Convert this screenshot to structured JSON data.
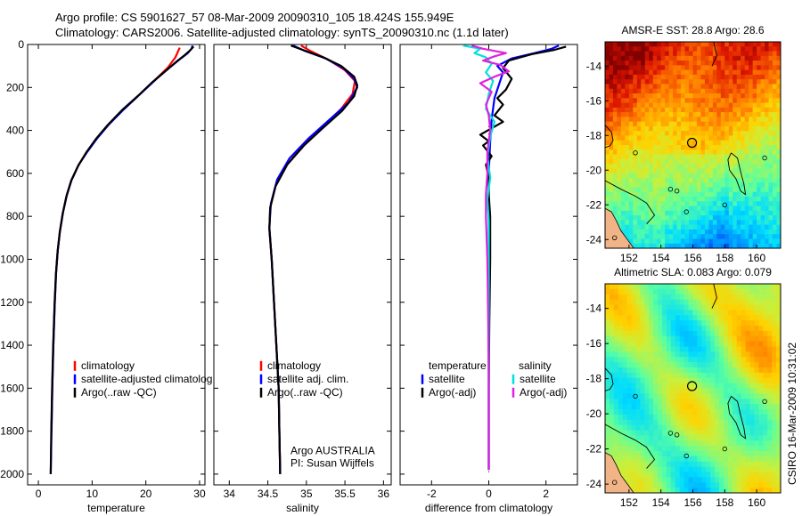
{
  "header": {
    "line1": "Argo profile: CS 5901627_57 08-Mar-2009 20090310_105 18.424S 155.949E",
    "line2": "Climatology: CARS2006. Satellite-adjusted climatology: synTS_20090310.nc (1.1d later)"
  },
  "depth_axis": {
    "ylim": [
      0,
      2050
    ],
    "ticks": [
      0,
      200,
      400,
      600,
      800,
      1000,
      1200,
      1400,
      1600,
      1800,
      2000
    ]
  },
  "chart_data": [
    {
      "id": "temperature",
      "type": "line",
      "xlabel": "temperature",
      "xlim": [
        -2,
        31
      ],
      "xticks": [
        0,
        10,
        20,
        30
      ],
      "legend": [
        "climatology",
        "satellite-adjusted climatolog",
        "Argo(..raw -QC)"
      ],
      "series": [
        {
          "name": "climatology",
          "color": "#ff0000",
          "points": [
            [
              26.3,
              15
            ],
            [
              25.5,
              60
            ],
            [
              24,
              110
            ],
            [
              21.5,
              170
            ],
            [
              18.5,
              240
            ],
            [
              15.5,
              310
            ],
            [
              12.8,
              380
            ],
            [
              10.8,
              440
            ],
            [
              9,
              500
            ],
            [
              7.5,
              560
            ],
            [
              6.2,
              630
            ],
            [
              5.3,
              700
            ],
            [
              4.6,
              780
            ],
            [
              4,
              870
            ],
            [
              3.6,
              960
            ],
            [
              3.3,
              1060
            ],
            [
              3.05,
              1200
            ],
            [
              2.8,
              1400
            ],
            [
              2.6,
              1600
            ],
            [
              2.45,
              1800
            ]
          ]
        },
        {
          "name": "satellite-adjusted climatology",
          "color": "#0000ff",
          "points": [
            [
              28.7,
              5
            ],
            [
              28.5,
              20
            ],
            [
              27.8,
              40
            ],
            [
              26.5,
              65
            ],
            [
              24.8,
              100
            ],
            [
              22,
              160
            ],
            [
              19,
              230
            ],
            [
              16,
              300
            ],
            [
              13.2,
              370
            ],
            [
              11,
              435
            ],
            [
              9.1,
              500
            ],
            [
              7.5,
              560
            ],
            [
              6.2,
              630
            ],
            [
              5.3,
              700
            ],
            [
              4.6,
              780
            ],
            [
              4,
              870
            ],
            [
              3.6,
              960
            ],
            [
              3.3,
              1060
            ],
            [
              3.05,
              1200
            ],
            [
              2.8,
              1400
            ],
            [
              2.6,
              1600
            ],
            [
              2.45,
              1800
            ],
            [
              2.3,
              2000
            ]
          ]
        },
        {
          "name": "Argo(..raw -QC)",
          "color": "#000000",
          "points": [
            [
              28.9,
              10
            ],
            [
              28.2,
              28
            ],
            [
              27.2,
              50
            ],
            [
              25.7,
              80
            ],
            [
              23.8,
              120
            ],
            [
              21,
              180
            ],
            [
              18.5,
              240
            ],
            [
              15.6,
              305
            ],
            [
              12.9,
              375
            ],
            [
              10.7,
              440
            ],
            [
              9,
              500
            ],
            [
              7.4,
              565
            ],
            [
              6.1,
              635
            ],
            [
              5.2,
              710
            ],
            [
              4.5,
              790
            ],
            [
              3.95,
              880
            ],
            [
              3.55,
              970
            ],
            [
              3.25,
              1070
            ],
            [
              3,
              1210
            ],
            [
              2.75,
              1410
            ],
            [
              2.55,
              1610
            ],
            [
              2.4,
              1810
            ],
            [
              2.3,
              2000
            ]
          ]
        }
      ]
    },
    {
      "id": "salinity",
      "type": "line",
      "xlabel": "salinity",
      "xlim": [
        33.8,
        36.1
      ],
      "xticks": [
        34,
        34.5,
        35,
        35.5,
        36
      ],
      "legend": [
        "climatology",
        "satellite adj. clim.",
        "Argo(..raw -QC)"
      ],
      "credit": [
        "Argo AUSTRALIA",
        "PI: Susan Wijffels"
      ],
      "series": [
        {
          "name": "climatology",
          "color": "#ff0000",
          "points": [
            [
              34.93,
              5
            ],
            [
              35.05,
              30
            ],
            [
              35.28,
              70
            ],
            [
              35.5,
              120
            ],
            [
              35.63,
              170
            ],
            [
              35.6,
              230
            ],
            [
              35.45,
              300
            ],
            [
              35.22,
              380
            ],
            [
              34.98,
              460
            ],
            [
              34.75,
              560
            ],
            [
              34.6,
              660
            ],
            [
              34.53,
              760
            ],
            [
              34.52,
              860
            ],
            [
              34.55,
              1000
            ],
            [
              34.58,
              1200
            ],
            [
              34.61,
              1400
            ],
            [
              34.64,
              1600
            ],
            [
              34.65,
              1800
            ],
            [
              34.66,
              2000
            ]
          ]
        },
        {
          "name": "satellite adj. clim.",
          "color": "#0000ff",
          "points": [
            [
              34.83,
              5
            ],
            [
              34.98,
              30
            ],
            [
              35.25,
              65
            ],
            [
              35.48,
              110
            ],
            [
              35.62,
              160
            ],
            [
              35.66,
              200
            ],
            [
              35.55,
              270
            ],
            [
              35.3,
              350
            ],
            [
              35.02,
              440
            ],
            [
              34.78,
              530
            ],
            [
              34.62,
              630
            ],
            [
              34.54,
              740
            ],
            [
              34.52,
              850
            ],
            [
              34.55,
              1000
            ],
            [
              34.58,
              1200
            ],
            [
              34.61,
              1400
            ],
            [
              34.64,
              1600
            ],
            [
              34.65,
              1800
            ],
            [
              34.66,
              2000
            ]
          ]
        },
        {
          "name": "Argo(..raw -QC)",
          "color": "#000000",
          "points": [
            [
              34.8,
              5
            ],
            [
              34.95,
              25
            ],
            [
              35.22,
              60
            ],
            [
              35.45,
              100
            ],
            [
              35.62,
              150
            ],
            [
              35.66,
              190
            ],
            [
              35.62,
              240
            ],
            [
              35.46,
              310
            ],
            [
              35.21,
              390
            ],
            [
              34.97,
              470
            ],
            [
              34.75,
              560
            ],
            [
              34.6,
              660
            ],
            [
              34.53,
              760
            ],
            [
              34.52,
              860
            ],
            [
              34.55,
              1000
            ],
            [
              34.58,
              1200
            ],
            [
              34.61,
              1400
            ],
            [
              34.64,
              1600
            ],
            [
              34.65,
              1800
            ],
            [
              34.66,
              2000
            ]
          ]
        }
      ]
    },
    {
      "id": "difference",
      "type": "line",
      "xlabel": "difference from climatology",
      "xlim": [
        -3.1,
        3.1
      ],
      "xticks": [
        -2,
        0,
        2
      ],
      "legend_left": [
        "temperature",
        "satellite",
        "Argo(-adj)"
      ],
      "legend_right": [
        "salinity",
        "satellite",
        "Argo(-adj)"
      ],
      "series": [
        {
          "name": "temperature satellite",
          "color": "#0000ff",
          "points": [
            [
              2.45,
              5
            ],
            [
              2.2,
              20
            ],
            [
              1.6,
              40
            ],
            [
              0.8,
              65
            ],
            [
              0.3,
              100
            ],
            [
              0.5,
              130
            ],
            [
              0.4,
              170
            ],
            [
              0.2,
              250
            ],
            [
              0.1,
              350
            ],
            [
              0.05,
              450
            ],
            [
              0,
              600
            ],
            [
              0,
              800
            ],
            [
              0,
              1000
            ],
            [
              0,
              1200
            ],
            [
              0,
              1400
            ],
            [
              0,
              1600
            ],
            [
              0,
              1800
            ],
            [
              0,
              1980
            ]
          ]
        },
        {
          "name": "temperature Argo(-adj)",
          "color": "#000000",
          "points": [
            [
              2.7,
              10
            ],
            [
              2.3,
              25
            ],
            [
              1.5,
              45
            ],
            [
              0.7,
              75
            ],
            [
              0.5,
              110
            ],
            [
              0.8,
              160
            ],
            [
              0.6,
              210
            ],
            [
              0.3,
              250
            ],
            [
              0.5,
              280
            ],
            [
              0.2,
              330
            ],
            [
              0.5,
              360
            ],
            [
              0.1,
              390
            ],
            [
              -0.3,
              420
            ],
            [
              0,
              450
            ],
            [
              -0.2,
              470
            ],
            [
              0.1,
              520
            ],
            [
              -0.1,
              560
            ],
            [
              0,
              620
            ],
            [
              0,
              700
            ],
            [
              0.05,
              800
            ],
            [
              0.05,
              1000
            ],
            [
              0.02,
              1300
            ],
            [
              0,
              1600
            ],
            [
              0,
              1980
            ]
          ]
        },
        {
          "name": "salinity satellite",
          "color": "#00e0e0",
          "points": [
            [
              -0.9,
              5
            ],
            [
              -0.3,
              20
            ],
            [
              -0.5,
              40
            ],
            [
              -0.1,
              60
            ],
            [
              0.1,
              90
            ],
            [
              -0.1,
              130
            ],
            [
              0.15,
              170
            ],
            [
              0,
              230
            ],
            [
              -0.1,
              300
            ],
            [
              0.2,
              360
            ],
            [
              0.05,
              430
            ],
            [
              -0.05,
              520
            ],
            [
              0.05,
              620
            ],
            [
              -0.05,
              720
            ],
            [
              0,
              820
            ],
            [
              0,
              1000
            ],
            [
              0,
              1200
            ],
            [
              0,
              1400
            ],
            [
              0,
              1600
            ],
            [
              0,
              1800
            ],
            [
              0,
              1980
            ]
          ]
        },
        {
          "name": "salinity Argo(-adj)",
          "color": "#e020e0",
          "points": [
            [
              -0.6,
              5
            ],
            [
              -0.2,
              20
            ],
            [
              0.6,
              40
            ],
            [
              0.2,
              55
            ],
            [
              -0.2,
              75
            ],
            [
              0.4,
              95
            ],
            [
              0.7,
              125
            ],
            [
              0.2,
              150
            ],
            [
              -0.3,
              180
            ],
            [
              0.1,
              220
            ],
            [
              -0.1,
              280
            ],
            [
              0,
              330
            ],
            [
              0.05,
              400
            ],
            [
              -0.05,
              500
            ],
            [
              -0.05,
              600
            ],
            [
              -0.1,
              700
            ],
            [
              -0.1,
              800
            ],
            [
              -0.05,
              1000
            ],
            [
              -0.02,
              1300
            ],
            [
              0,
              1600
            ],
            [
              0,
              1980
            ]
          ]
        }
      ]
    },
    {
      "id": "sst_map",
      "type": "heatmap",
      "title": "AMSR-E SST: 28.8 Argo: 28.6",
      "xticks": [
        152,
        154,
        156,
        158,
        160
      ],
      "yticks": [
        -14,
        -16,
        -18,
        -20,
        -22,
        -24
      ],
      "xlim": [
        150.5,
        161.5
      ],
      "ylim": [
        -24.5,
        -12.6
      ],
      "argo_position": [
        155.949,
        -18.424
      ]
    },
    {
      "id": "sla_map",
      "type": "heatmap",
      "title": "Altimetric SLA: 0.083 Argo: 0.079",
      "xticks": [
        152,
        154,
        156,
        158,
        160
      ],
      "yticks": [
        -14,
        -16,
        -18,
        -20,
        -22,
        -24
      ],
      "xlim": [
        150.5,
        161.5
      ],
      "ylim": [
        -24.5,
        -12.6
      ],
      "argo_position": [
        155.949,
        -18.424
      ]
    }
  ],
  "side_label": "CSIRO 16-Mar-2009 10:31:02"
}
